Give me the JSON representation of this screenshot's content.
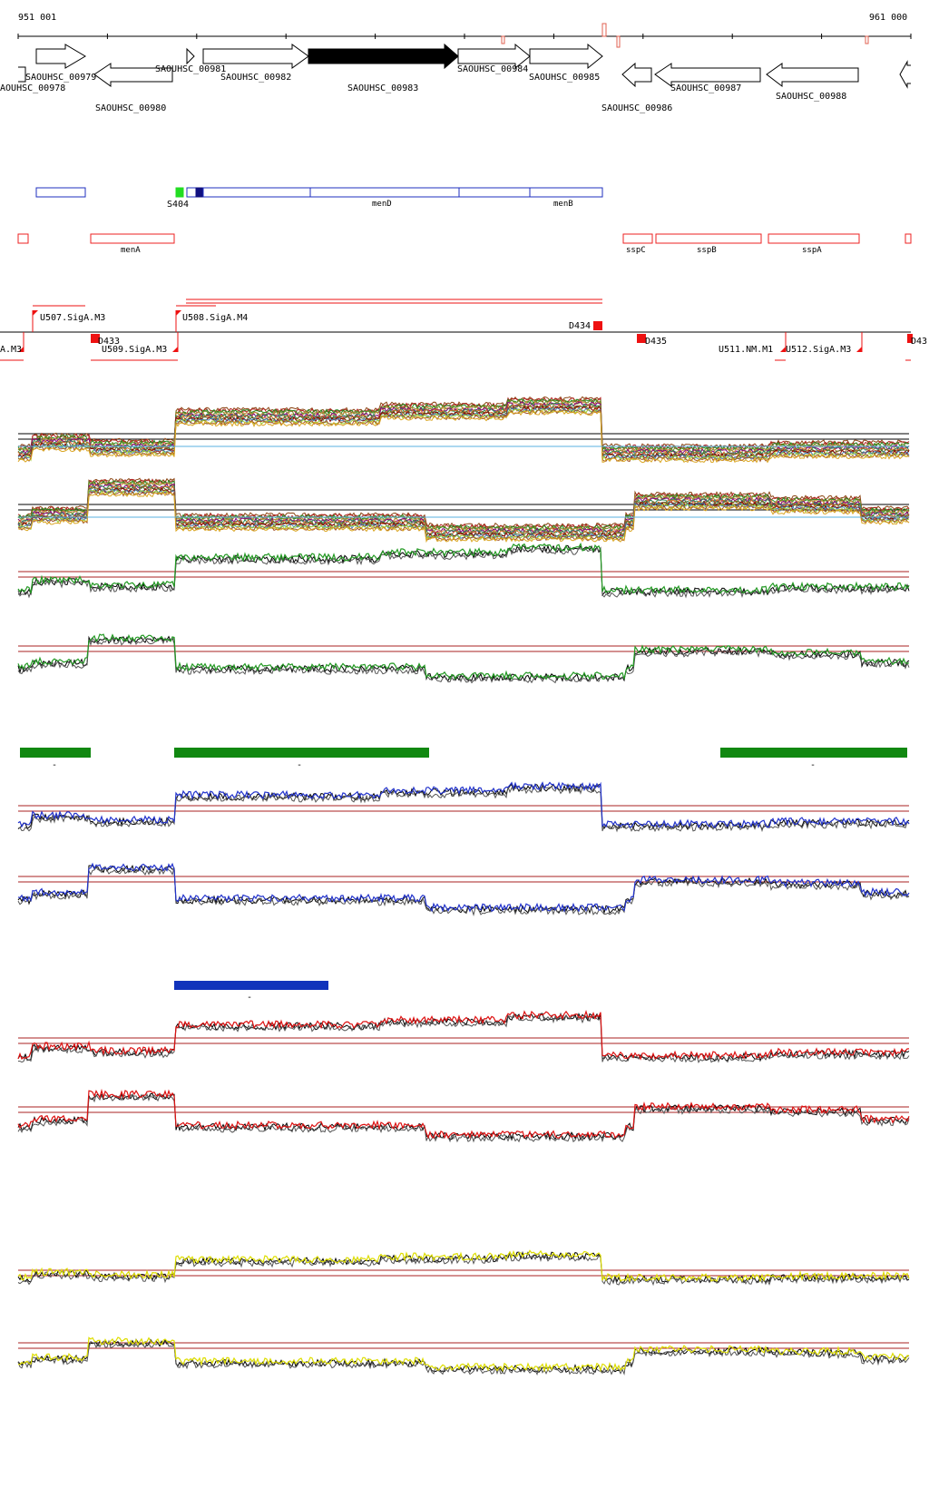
{
  "coords": {
    "start": "951 001",
    "end": "961 000"
  },
  "colors": {
    "gene_outline": "#000000",
    "gene_highlight": "#000000",
    "feature_blue": "#1f2fbf",
    "feature_green": "#22dd22",
    "feature_navy": "#101080",
    "feature_red": "#ee2222",
    "term_red": "#ee1111",
    "seg_green": "#118811",
    "seg_blue": "#1133bb",
    "trace_black": "#000000",
    "trace_green": "#229922",
    "trace_blue": "#2233cc",
    "trace_red": "#dd1111",
    "trace_yellow": "#dddd00",
    "ref_line": "#aa2222"
  },
  "genes": [
    {
      "name": "SAOUHSC_00978",
      "dir": "+"
    },
    {
      "name": "SAOUHSC_00979",
      "dir": "+"
    },
    {
      "name": "SAOUHSC_00980",
      "dir": "-"
    },
    {
      "name": "SAOUHSC_00981",
      "dir": "+"
    },
    {
      "name": "SAOUHSC_00982",
      "dir": "+"
    },
    {
      "name": "SAOUHSC_00983",
      "dir": "+",
      "highlight": true
    },
    {
      "name": "SAOUHSC_00984",
      "dir": "+"
    },
    {
      "name": "SAOUHSC_00985",
      "dir": "+"
    },
    {
      "name": "SAOUHSC_00986",
      "dir": "-"
    },
    {
      "name": "SAOUHSC_00987",
      "dir": "-"
    },
    {
      "name": "SAOUHSC_00988",
      "dir": "-"
    }
  ],
  "blue_features": [
    "S404",
    "menD",
    "menB"
  ],
  "red_features": [
    "menA",
    "sspC",
    "sspB",
    "sspA"
  ],
  "promoters_top": [
    "U507.SigA.M3",
    "U508.SigA.M4"
  ],
  "promoters_bottom": [
    "A.M3",
    "D433",
    "U509.SigA.M3",
    "D434",
    "D435",
    "U511.NM.M1",
    "U512.SigA.M3",
    "D43"
  ],
  "segments": [
    "-",
    "-",
    "-",
    "-"
  ]
}
